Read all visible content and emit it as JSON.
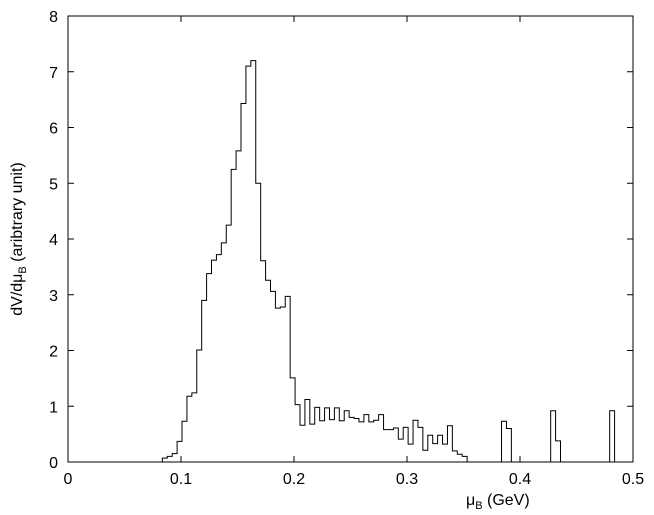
{
  "chart_data": {
    "type": "histogram",
    "xlabel": "μ",
    "xlabel_sub": "B",
    "xlabel_unit": " (GeV)",
    "ylabel_prefix": "dV/dμ",
    "ylabel_sub": "B",
    "ylabel_suffix": "  (aribtrary unit)",
    "xlim": [
      0,
      0.5
    ],
    "ylim": [
      0,
      8
    ],
    "xticks": [
      0,
      0.1,
      0.2,
      0.3,
      0.4,
      0.5
    ],
    "xtick_labels": [
      "0",
      "0.1",
      "0.2",
      "0.3",
      "0.4",
      "0.5"
    ],
    "yticks": [
      0,
      1,
      2,
      3,
      4,
      5,
      6,
      7,
      8
    ],
    "ytick_labels": [
      "0",
      "1",
      "2",
      "3",
      "4",
      "5",
      "6",
      "7",
      "8"
    ],
    "grid": false,
    "line_color": "#000000",
    "bin_width": 0.00435,
    "bin_start": 0.0835,
    "values": [
      0.07,
      0.1,
      0.15,
      0.37,
      0.73,
      1.18,
      1.24,
      2.01,
      2.9,
      3.38,
      3.62,
      3.72,
      3.93,
      4.25,
      5.25,
      5.58,
      6.43,
      7.1,
      7.2,
      5.0,
      3.61,
      3.26,
      3.06,
      2.76,
      2.78,
      2.97,
      1.51,
      1.03,
      0.66,
      1.12,
      0.68,
      0.98,
      0.74,
      0.97,
      0.76,
      0.97,
      0.74,
      0.92,
      0.8,
      0.78,
      0.72,
      0.85,
      0.72,
      0.75,
      0.85,
      0.58,
      0.58,
      0.61,
      0.41,
      0.62,
      0.32,
      0.75,
      0.62,
      0.21,
      0.48,
      0.33,
      0.48,
      0.32,
      0.65,
      0.2,
      0.14,
      0.1,
      0,
      0,
      0,
      0,
      0,
      0,
      0,
      0.73,
      0.6,
      0,
      0,
      0,
      0,
      0,
      0,
      0,
      0,
      0.92,
      0.38,
      0,
      0,
      0,
      0,
      0,
      0,
      0,
      0,
      0,
      0,
      0.92,
      0
    ]
  }
}
